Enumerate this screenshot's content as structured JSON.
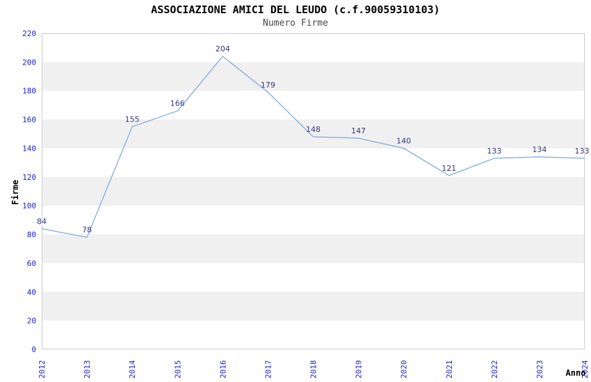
{
  "page": {
    "title": "ASSOCIAZIONE AMICI DEL LEUDO (c.f.90059310103)",
    "subtitle": "Numero Firme"
  },
  "chart_data": {
    "type": "line",
    "title": "ASSOCIAZIONE AMICI DEL LEUDO (c.f.90059310103)",
    "subtitle": "Numero Firme",
    "xlabel": "Anno",
    "ylabel": "Firme",
    "categories": [
      "2012",
      "2013",
      "2014",
      "2015",
      "2016",
      "2017",
      "2018",
      "2019",
      "2020",
      "2021",
      "2022",
      "2023",
      "2024"
    ],
    "series": [
      {
        "name": "Numero Firme",
        "values": [
          84,
          78,
          155,
          166,
          204,
          179,
          148,
          147,
          140,
          121,
          133,
          134,
          133
        ]
      }
    ],
    "ylim": [
      0,
      220
    ],
    "ytick_step": 20,
    "yticks": [
      0,
      20,
      40,
      60,
      80,
      100,
      120,
      140,
      160,
      180,
      200,
      220
    ],
    "grid": "alternating-horizontal-bands",
    "legend_position": "none",
    "markers": "none",
    "data_labels": "above-points",
    "x_tick_rotation": -90,
    "colors": {
      "line": "#7aa9dd",
      "tick_labels": "#2222cc",
      "value_labels": "#35357f",
      "band_fill": "#f0f0f0",
      "plot_border": "#cccccc",
      "plot_background": "#ffffff",
      "title": "#000000",
      "subtitle": "#4a4a4a",
      "axis_title": "#000000"
    }
  }
}
